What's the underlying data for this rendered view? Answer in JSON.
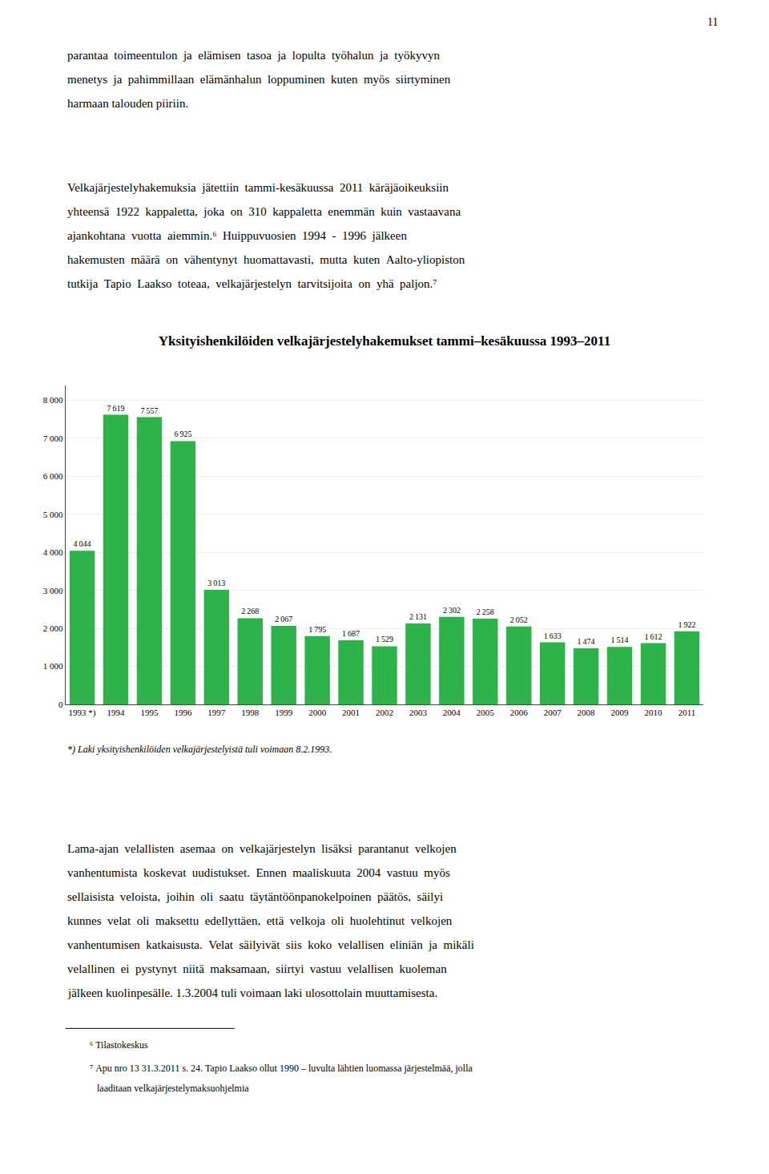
{
  "chart_data": {
    "type": "bar",
    "title": "Yksityishenkilöiden velkajärjestelyhakemukset tammi–kesäkuussa 1993–2011",
    "categories": [
      "1993 *)",
      "1994",
      "1995",
      "1996",
      "1997",
      "1998",
      "1999",
      "2000",
      "2001",
      "2002",
      "2003",
      "2004",
      "2005",
      "2006",
      "2007",
      "2008",
      "2009",
      "2010",
      "2011"
    ],
    "values": [
      4044,
      7619,
      7557,
      6925,
      3013,
      2268,
      2067,
      1795,
      1687,
      1529,
      2131,
      2302,
      2258,
      2052,
      1633,
      1474,
      1514,
      1612,
      1922
    ],
    "value_labels": [
      "4 044",
      "7 619",
      "7 557",
      "6 925",
      "3 013",
      "2 268",
      "2 067",
      "1 795",
      "1 687",
      "1 529",
      "2 131",
      "2 302",
      "2 258",
      "2 052",
      "1 633",
      "1 474",
      "1 514",
      "1 612",
      "1 922"
    ],
    "color": "#2db34a",
    "ylim": [
      0,
      8400
    ],
    "yticks": [
      0,
      {
        "value": 1000,
        "label": "1 000"
      },
      {
        "value": 2000,
        "label": "2 000"
      },
      {
        "value": 3000,
        "label": "3 000"
      },
      {
        "value": 4000,
        "label": "4 000"
      },
      {
        "value": 5000,
        "label": "5 000"
      },
      {
        "value": 6000,
        "label": "6 000"
      },
      {
        "value": 7000,
        "label": "7 000"
      },
      {
        "value": 8000,
        "label": "8 000"
      }
    ],
    "grid": true,
    "data_labels": true,
    "annotations": [
      "11",
      "parantaa  toimeentulon  ja  elämisen  tasoa  ja  lopulta  työhalun  ja  työkyvyn",
      "menetys  ja  pahimmillaan  elämänhalun  loppuminen  kuten  myös  siirtyminen",
      "harmaan talouden piiriin.",
      "Velkajärjestelyhakemuksia  jätettiin  tammi-kesäkuussa  2011  käräjäoikeuksiin",
      "yhteensä  1922  kappaletta,  joka  on  310  kappaletta  enemmän  kuin  vastaavana",
      "ajankohtana  vuotta  aiemmin.⁶  Huippuvuosien  1994  -  1996  jälkeen",
      "hakemusten  määrä  on  vähentynyt  huomattavasti,  mutta  kuten  Aalto-yliopiston",
      "tutkija  Tapio  Laakso  toteaa,  velkajärjestelyn  tarvitsijoita  on  yhä  paljon.⁷",
      "*) Laki yksityishenkilöiden velkajärjestelyistä tuli voimaan 8.2.1993.",
      "Lama-ajan  velallisten  asemaa  on  velkajärjestelyn  lisäksi  parantanut  velkojen",
      "vanhentumista  koskevat  uudistukset.  Ennen  maaliskuuta  2004  vastuu  myös",
      "sellaisista  veloista,  joihin  oli  saatu  täytäntöönpanokelpoinen  päätös,  säilyi",
      "kunnes  velat  oli  maksettu  edellyttäen,  että  velkoja  oli  huolehtinut  velkojen",
      "vanhentumisen  katkaisusta.  Velat  säilyivät  siis  koko  velallisen  eliniän  ja  mikäli",
      "velallinen  ei  pystynyt  niitä  maksamaan,  siirtyi  vastuu  velallisen  kuoleman",
      "jälkeen kuolinpesälle. 1.3.2004 tuli voimaan laki ulosottolain muuttamisesta.",
      "⁶ Tilastokeskus",
      "⁷ Apu nro 13 31.3.2011 s. 24. Tapio Laakso ollut 1990 – luvulta lähtien luomassa järjestelmää, jolla",
      "   laaditaan velkajärjestelymaksuohjelmia"
    ]
  }
}
